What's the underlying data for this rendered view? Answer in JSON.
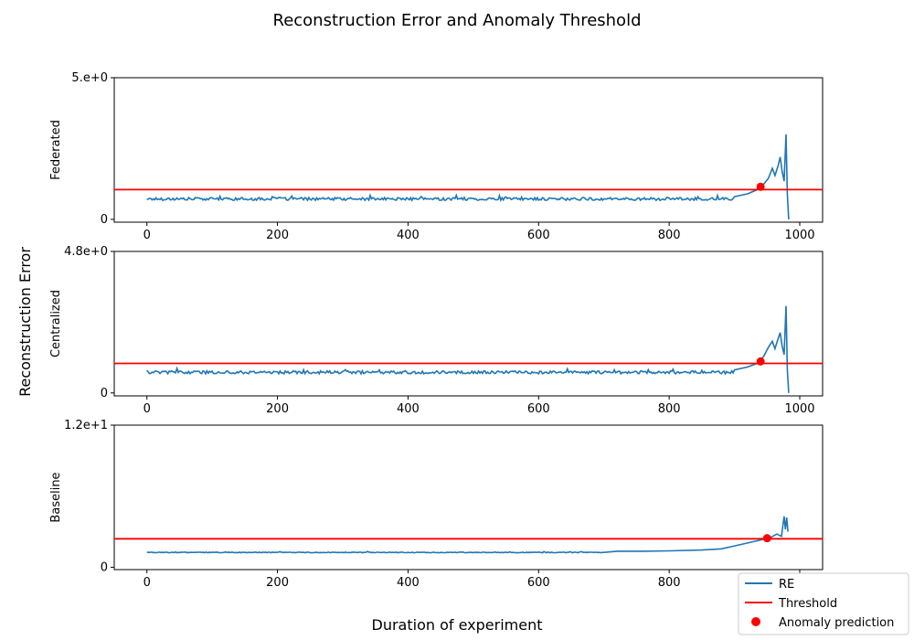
{
  "chart_data": {
    "type": "line",
    "title": "Reconstruction Error and Anomaly Threshold",
    "xlabel": "Duration of experiment",
    "ylabel": "Reconstruction Error",
    "legend": {
      "placement": "bottom-right",
      "entries": [
        "RE",
        "Threshold",
        "Anomaly prediction"
      ]
    },
    "colors": {
      "re": "#1f77b4",
      "threshold": "#ff0000",
      "anomaly": "#ff0000"
    },
    "panels": [
      {
        "name": "Federated",
        "xlim": [
          -50,
          1035
        ],
        "xticks": [
          0,
          200,
          400,
          600,
          800,
          1000
        ],
        "ylim": [
          -0.1,
          5.0
        ],
        "yticks": [
          0,
          5.0
        ],
        "ytick_labels": [
          "0",
          "5.e+0"
        ],
        "threshold": 1.05,
        "anomaly_point": [
          940,
          1.15
        ],
        "re_baseline": 0.72,
        "re_noise": 0.05,
        "re_tail": [
          [
            900,
            0.8
          ],
          [
            920,
            0.9
          ],
          [
            935,
            1.05
          ],
          [
            945,
            1.25
          ],
          [
            952,
            1.45
          ],
          [
            958,
            1.8
          ],
          [
            962,
            1.55
          ],
          [
            967,
            1.9
          ],
          [
            970,
            2.2
          ],
          [
            973,
            1.7
          ],
          [
            976,
            1.35
          ],
          [
            979,
            3.0
          ],
          [
            981,
            0.9
          ],
          [
            983,
            0.0
          ]
        ]
      },
      {
        "name": "Centralized",
        "xlim": [
          -50,
          1035
        ],
        "xticks": [
          0,
          200,
          400,
          600,
          800,
          1000
        ],
        "ylim": [
          -0.1,
          4.8
        ],
        "yticks": [
          0,
          4.8
        ],
        "ytick_labels": [
          "0",
          "4.8e+0"
        ],
        "threshold": 1.0,
        "anomaly_point": [
          940,
          1.07
        ],
        "re_baseline": 0.7,
        "re_noise": 0.05,
        "re_tail": [
          [
            900,
            0.78
          ],
          [
            920,
            0.88
          ],
          [
            935,
            1.0
          ],
          [
            945,
            1.25
          ],
          [
            952,
            1.55
          ],
          [
            958,
            1.75
          ],
          [
            962,
            1.5
          ],
          [
            967,
            1.85
          ],
          [
            970,
            2.05
          ],
          [
            973,
            1.6
          ],
          [
            976,
            1.3
          ],
          [
            979,
            2.95
          ],
          [
            981,
            0.8
          ],
          [
            983,
            0.0
          ]
        ]
      },
      {
        "name": "Baseline",
        "xlim": [
          -50,
          1035
        ],
        "xticks": [
          0,
          200,
          400,
          600,
          800,
          1000
        ],
        "ylim": [
          -0.2,
          12.0
        ],
        "yticks": [
          0,
          12.0
        ],
        "ytick_labels": [
          "0",
          "1.2e+1"
        ],
        "threshold": 2.4,
        "anomaly_point": [
          950,
          2.45
        ],
        "re_baseline": 1.25,
        "re_noise": 0.03,
        "re_tail": [
          [
            700,
            1.25
          ],
          [
            720,
            1.35
          ],
          [
            760,
            1.35
          ],
          [
            800,
            1.38
          ],
          [
            850,
            1.45
          ],
          [
            880,
            1.55
          ],
          [
            900,
            1.8
          ],
          [
            920,
            2.05
          ],
          [
            940,
            2.3
          ],
          [
            955,
            2.5
          ],
          [
            965,
            2.8
          ],
          [
            972,
            2.6
          ],
          [
            976,
            4.3
          ],
          [
            978,
            3.2
          ],
          [
            980,
            4.2
          ],
          [
            982,
            3.0
          ]
        ]
      }
    ]
  }
}
